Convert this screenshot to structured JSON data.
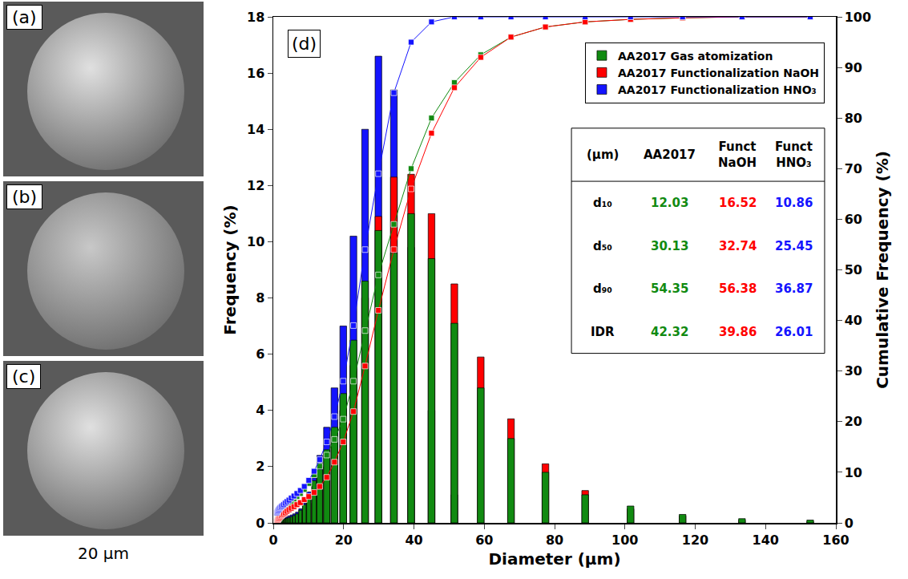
{
  "chart_data": {
    "type": "bar",
    "panel_label": "(d)",
    "x_label": "Diameter (μm)",
    "y_label": "Frequency (%)",
    "y2_label": "Cumulative Frequency (%)",
    "x": [
      1.0,
      1.15,
      1.32,
      1.51,
      1.73,
      1.98,
      2.27,
      2.6,
      2.98,
      3.41,
      3.9,
      4.47,
      5.12,
      5.87,
      6.72,
      7.7,
      8.82,
      10.1,
      11.6,
      13.2,
      15.2,
      17.4,
      19.9,
      22.8,
      26.1,
      29.9,
      34.3,
      39.2,
      45.0,
      51.5,
      59.0,
      67.6,
      77.4,
      88.7,
      101.6,
      116.4,
      133.3,
      152.7
    ],
    "series": [
      {
        "name": "AA2017 Gas atomization",
        "color": "#118a11",
        "marker": "square",
        "values": [
          0.05,
          0.06,
          0.07,
          0.08,
          0.09,
          0.1,
          0.11,
          0.12,
          0.13,
          0.15,
          0.17,
          0.19,
          0.22,
          0.26,
          0.32,
          0.45,
          0.65,
          1.0,
          1.5,
          1.9,
          2.6,
          3.4,
          4.6,
          6.5,
          8.6,
          10.4,
          9.6,
          11.0,
          9.4,
          7.1,
          4.8,
          3.0,
          1.8,
          1.0,
          0.6,
          0.3,
          0.15,
          0.1
        ],
        "cumulative": [
          0.3,
          0.6,
          0.9,
          1.2,
          1.5,
          1.8,
          2.1,
          2.4,
          2.7,
          3.0,
          3.4,
          3.8,
          4.2,
          4.7,
          5.2,
          5.8,
          6.6,
          7.8,
          9.5,
          11.2,
          13.4,
          16.5,
          20.5,
          28,
          38,
          49,
          59,
          70,
          80,
          87,
          92.5,
          96,
          98,
          99,
          99.5,
          99.8,
          100,
          100
        ]
      },
      {
        "name": "AA2017 Functionalization NaOH",
        "color": "#ff0000",
        "marker": "square",
        "values": [
          0.03,
          0.04,
          0.05,
          0.05,
          0.06,
          0.07,
          0.08,
          0.09,
          0.1,
          0.11,
          0.12,
          0.14,
          0.16,
          0.19,
          0.23,
          0.3,
          0.45,
          0.7,
          1.0,
          1.4,
          2.0,
          2.8,
          4.0,
          5.6,
          8.0,
          10.9,
          12.3,
          12.4,
          11.0,
          8.5,
          5.9,
          3.7,
          2.1,
          1.15,
          0.5,
          0.25,
          0.1,
          0.05
        ],
        "cumulative": [
          0.2,
          0.4,
          0.6,
          0.8,
          1.0,
          1.2,
          1.4,
          1.6,
          1.8,
          2.0,
          2.3,
          2.6,
          2.9,
          3.2,
          3.6,
          4.0,
          4.6,
          5.2,
          6.0,
          7.2,
          9.0,
          12,
          16,
          22,
          31,
          42,
          54,
          66,
          77,
          86,
          92,
          96,
          98,
          99,
          99.5,
          99.8,
          100,
          100
        ]
      },
      {
        "name": "AA2017 Functionalization HNO₃",
        "color": "#1414ff",
        "marker": "square",
        "values": [
          0.1,
          0.1,
          0.12,
          0.12,
          0.13,
          0.14,
          0.15,
          0.16,
          0.18,
          0.2,
          0.22,
          0.25,
          0.28,
          0.32,
          0.38,
          0.5,
          0.7,
          1.1,
          1.6,
          2.4,
          3.4,
          4.8,
          7.0,
          10.2,
          14.0,
          16.6,
          15.4,
          9.8,
          4.0,
          1.0,
          0,
          0,
          0,
          0,
          0,
          0,
          0,
          0
        ],
        "cumulative": [
          2.0,
          2.2,
          2.4,
          2.6,
          2.8,
          3.0,
          3.2,
          3.4,
          3.6,
          3.9,
          4.2,
          4.5,
          4.9,
          5.3,
          5.8,
          6.4,
          7.2,
          8.4,
          10.2,
          12.5,
          16,
          21,
          28,
          39,
          54,
          69,
          85,
          95,
          99,
          100,
          100,
          100,
          100,
          100,
          100,
          100,
          100,
          100
        ]
      }
    ],
    "xlim": [
      0,
      160
    ],
    "xticks": [
      0,
      20,
      40,
      60,
      80,
      100,
      120,
      140,
      160
    ],
    "ylim": [
      0,
      18
    ],
    "yticks": [
      0,
      2,
      4,
      6,
      8,
      10,
      12,
      14,
      16,
      18
    ],
    "y2lim": [
      0,
      100
    ],
    "y2ticks": [
      0,
      10,
      20,
      30,
      40,
      50,
      60,
      70,
      80,
      90,
      100
    ],
    "grid": false,
    "stacked": false,
    "legend": "upper right",
    "table": {
      "header": [
        "(µm)",
        "AA2017",
        "Funct NaOH",
        "Funct HNO₃"
      ],
      "rows": [
        [
          "d₁₀",
          "12.03",
          "16.52",
          "10.86"
        ],
        [
          "d₅₀",
          "30.13",
          "32.74",
          "25.45"
        ],
        [
          "d₉₀",
          "54.35",
          "56.38",
          "36.87"
        ],
        [
          "IDR",
          "42.32",
          "39.86",
          "26.01"
        ]
      ]
    }
  },
  "images": {
    "panels": [
      "(a)",
      "(b)",
      "(c)"
    ],
    "scale_bar": "20 µm"
  }
}
